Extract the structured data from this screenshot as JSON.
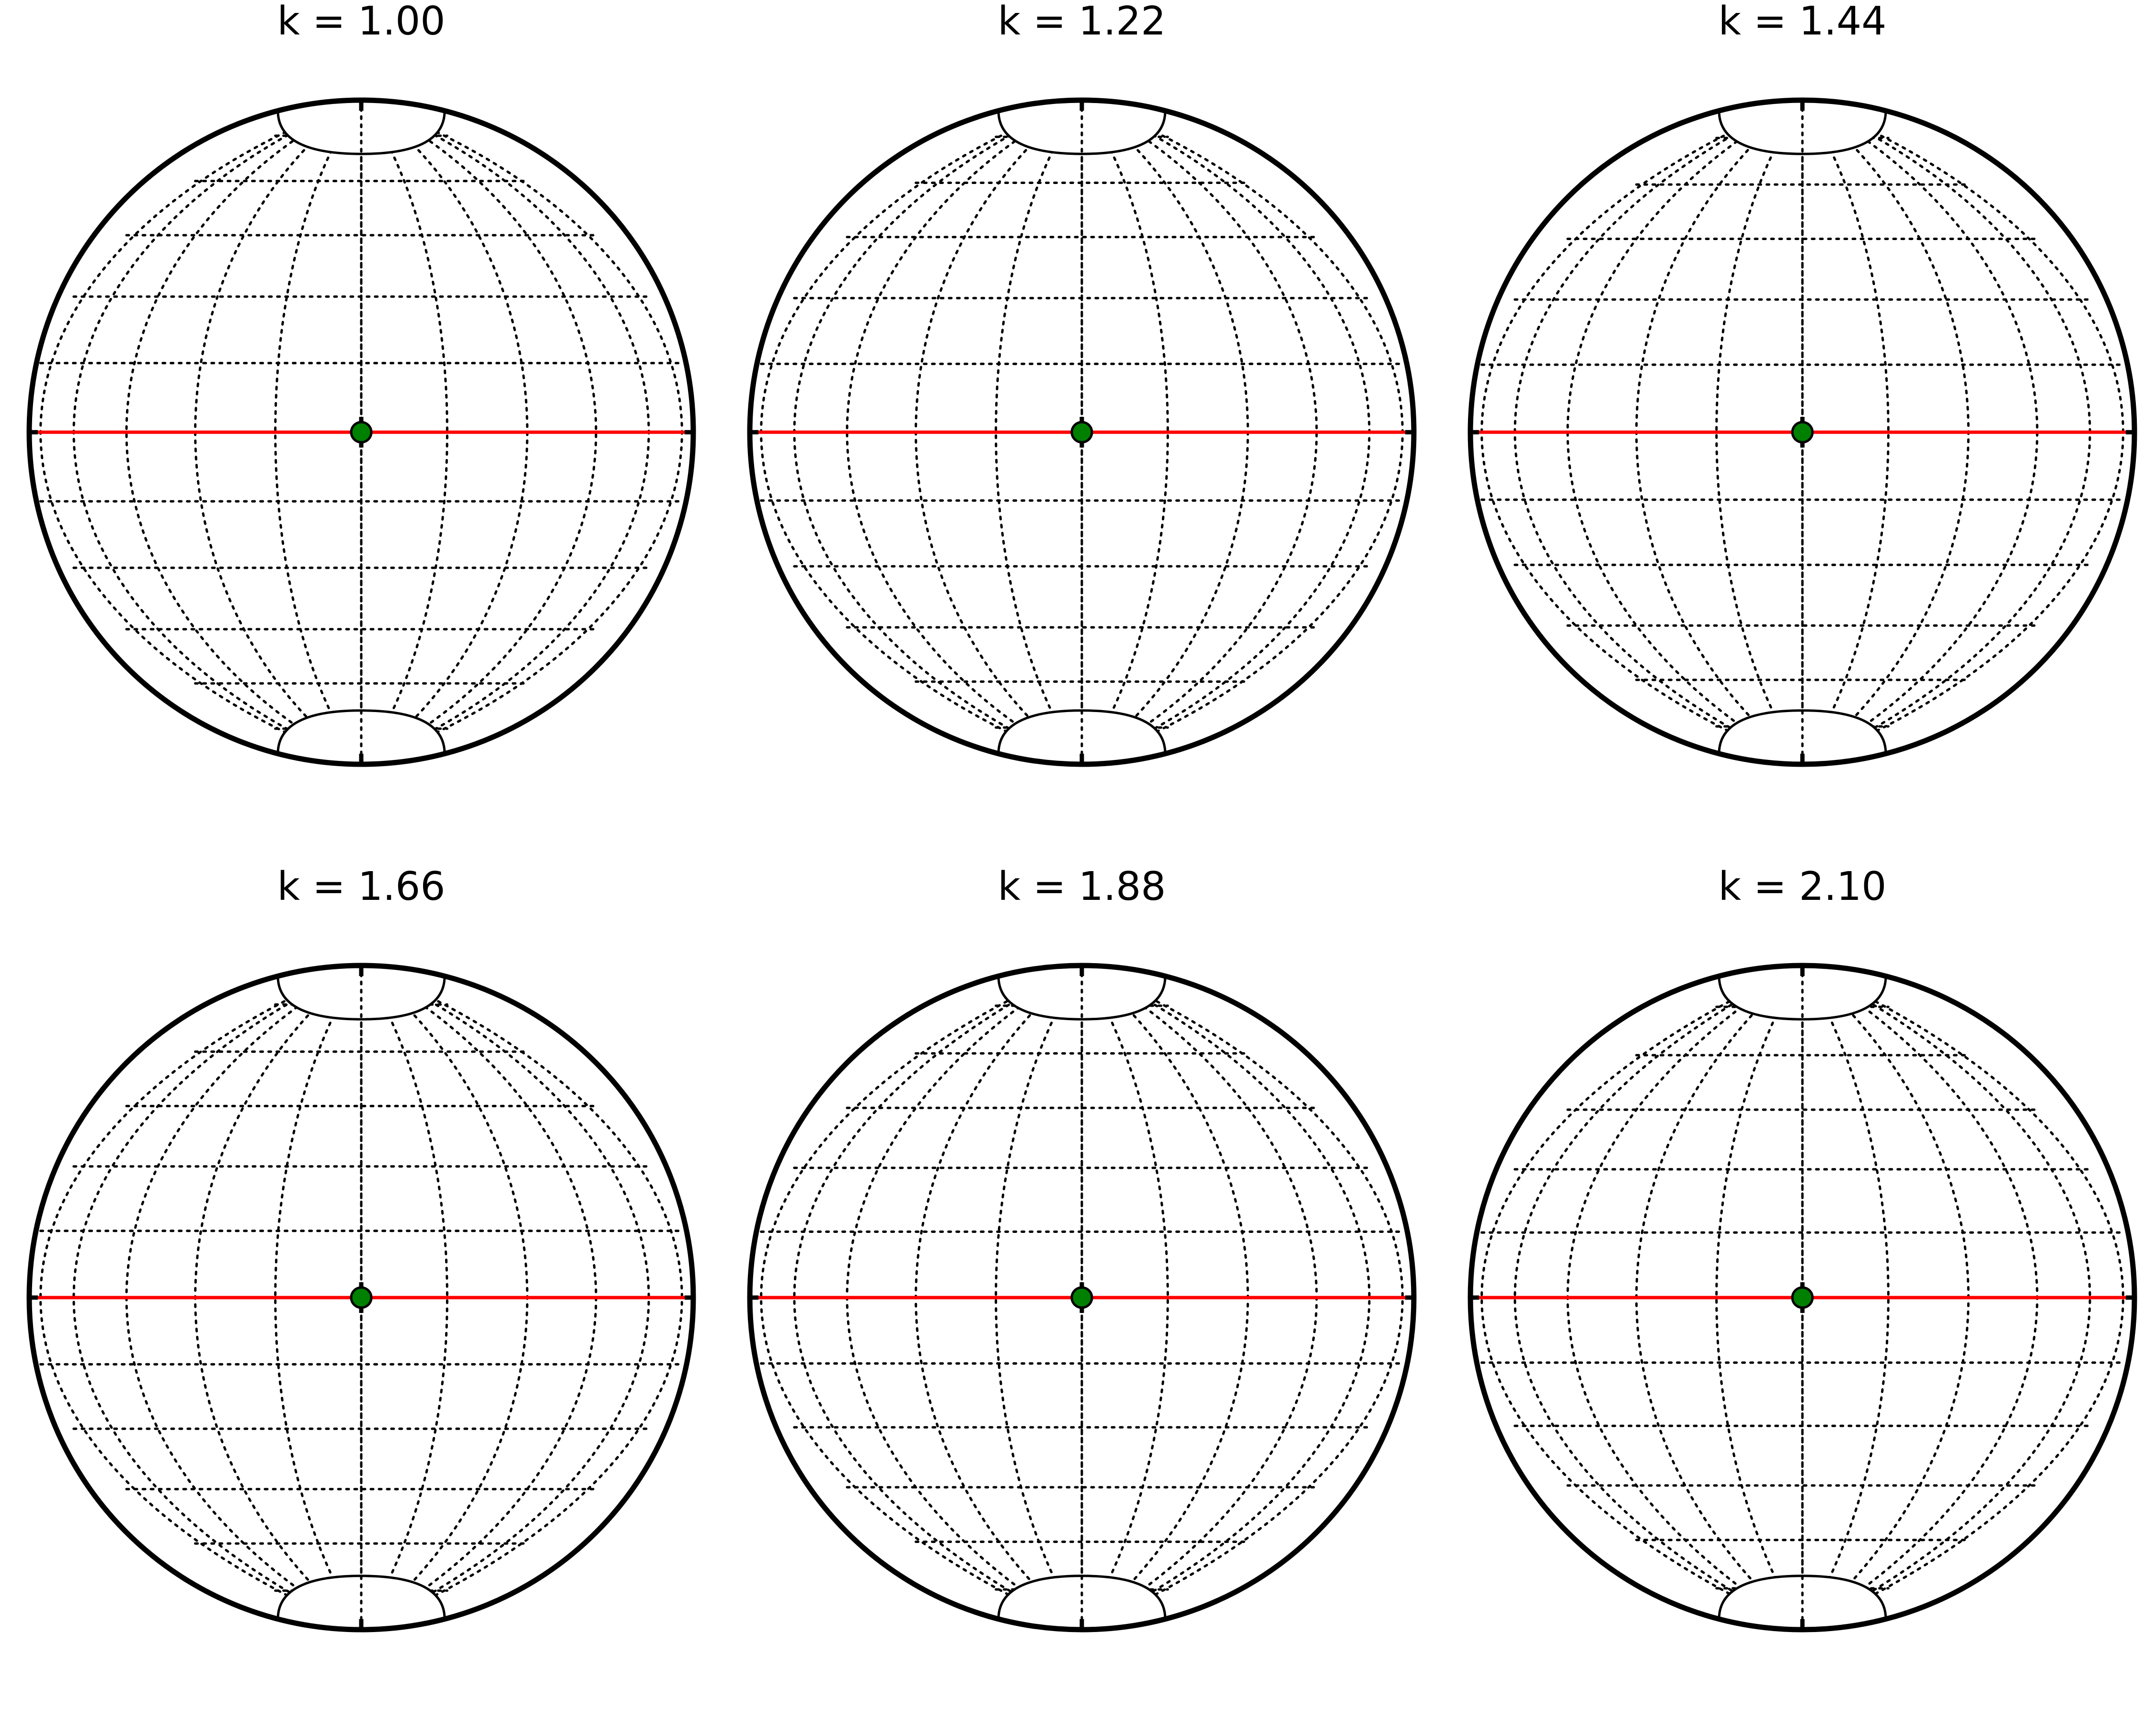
{
  "figure": {
    "panels": [
      {
        "k": 1.0,
        "title": "k = 1.00"
      },
      {
        "k": 1.22,
        "title": "k = 1.22"
      },
      {
        "k": 1.44,
        "title": "k = 1.44"
      },
      {
        "k": 1.66,
        "title": "k = 1.66"
      },
      {
        "k": 1.88,
        "title": "k = 1.88"
      },
      {
        "k": 2.1,
        "title": "k = 2.10"
      }
    ],
    "graticule_step_deg": 15,
    "colors": {
      "boundary": "#000000",
      "grid": "#000000",
      "equator": "#ff0000",
      "center_marker": "#008000",
      "background": "#ffffff"
    }
  }
}
